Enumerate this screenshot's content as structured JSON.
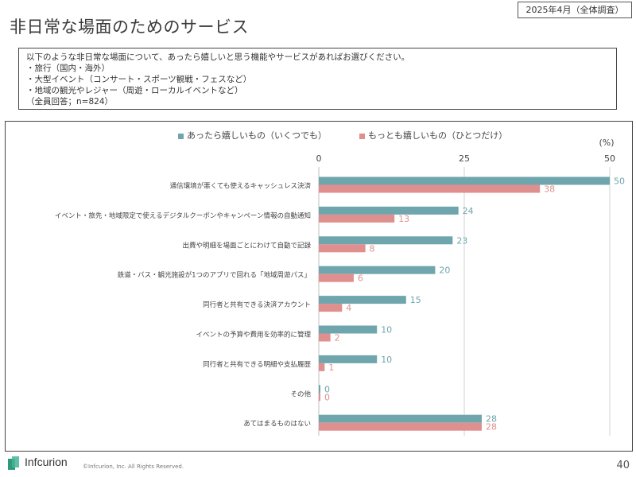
{
  "header": {
    "date_tag": "2025年4月（全体調査）",
    "title": "非日常な場面のためのサービス"
  },
  "question": {
    "lines": [
      "以下のような非日常な場面について、あったら嬉しいと思う機能やサービスがあればお選びください。",
      "・旅行（国内・海外）",
      "・大型イベント（コンサート・スポーツ観戦・フェスなど）",
      "・地域の観光やレジャー（周遊・ローカルイベントなど）",
      "（全員回答；n=824）"
    ]
  },
  "colors": {
    "series1": "#6fa6ae",
    "series2": "#e08f8f"
  },
  "chart_data": {
    "type": "bar",
    "orientation": "horizontal",
    "unit_label": "(%)",
    "xlim": [
      0,
      50
    ],
    "ticks": [
      0,
      25,
      50
    ],
    "grid": "vertical at ticks",
    "legend_position": "top",
    "categories": [
      "通信環境が悪くても使えるキャッシュレス決済",
      "イベント・旅先・地域限定で使えるデジタルクーポンやキャンペーン情報の自動通知",
      "出費や明細を場面ごとにわけて自動で記録",
      "鉄道・バス・観光施設が1つのアプリで回れる「地域周遊パス」",
      "同行者と共有できる決済アカウント",
      "イベントの予算や費用を効率的に管理",
      "同行者と共有できる明細や支払履歴",
      "その他",
      "あてはまるものはない"
    ],
    "series": [
      {
        "name": "あったら嬉しいもの（いくつでも）",
        "values": [
          50,
          24,
          23,
          20,
          15,
          10,
          10,
          0,
          28
        ]
      },
      {
        "name": "もっとも嬉しいもの（ひとつだけ）",
        "values": [
          38,
          13,
          8,
          6,
          4,
          2,
          1,
          0,
          28
        ]
      }
    ]
  },
  "footer": {
    "logo_text": "Infcurion",
    "copyright": "©Infcurion, Inc.   All Rights Reserved.",
    "page_number": "40"
  }
}
